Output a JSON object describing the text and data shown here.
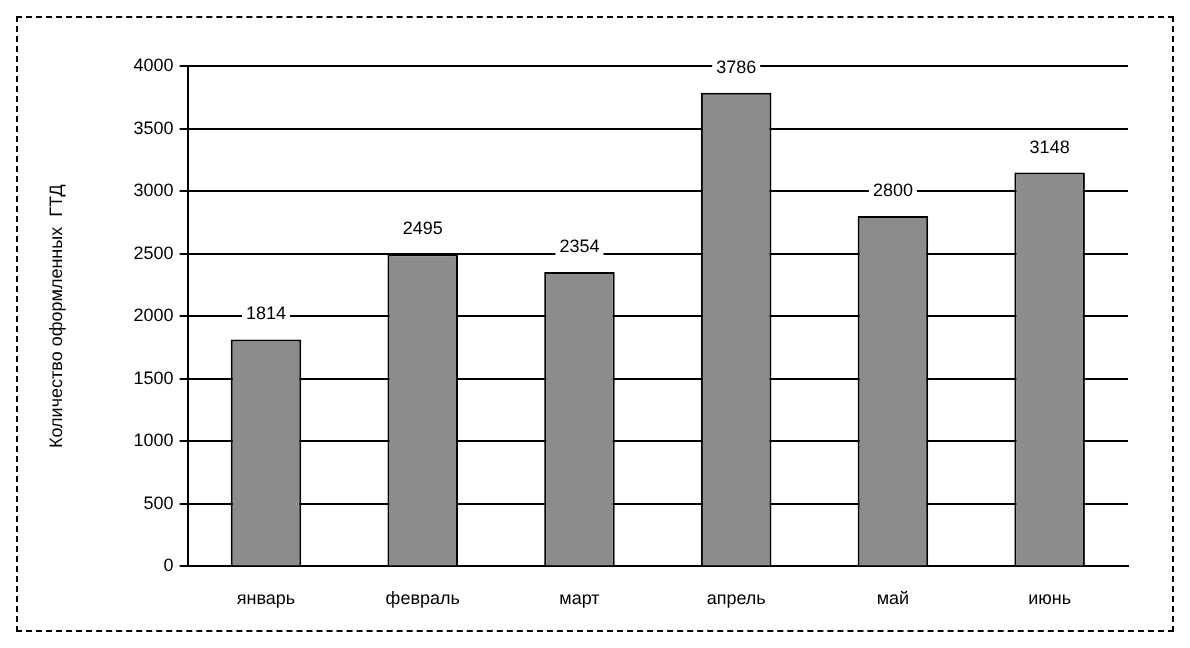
{
  "chart_data": {
    "type": "bar",
    "categories": [
      "январь",
      "февраль",
      "март",
      "апрель",
      "май",
      "июнь"
    ],
    "values": [
      1814,
      2495,
      2354,
      3786,
      2800,
      3148
    ],
    "color": "#8c8c8c",
    "ylabel": "Количество оформленных  ГТД",
    "ylim": [
      0,
      4000
    ],
    "yticks": [
      0,
      500,
      1000,
      1500,
      2000,
      2500,
      3000,
      3500,
      4000
    ],
    "grid": "y",
    "data_labels": true,
    "legend": false
  }
}
